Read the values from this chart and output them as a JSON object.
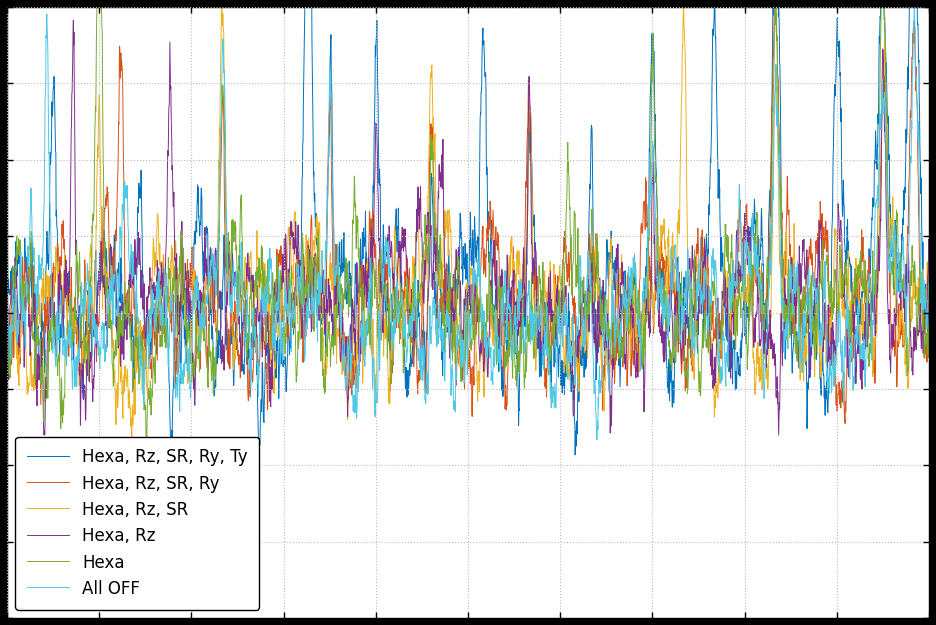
{
  "title": "",
  "xlabel": "",
  "ylabel": "",
  "background_color": "#000000",
  "plot_bg_color": "#ffffff",
  "grid_color": "#aaaaaa",
  "figsize": [
    9.36,
    6.25
  ],
  "dpi": 100,
  "series": [
    {
      "label": "Hexa, Rz, SR, Ry, Ty",
      "color": "#0072bd"
    },
    {
      "label": "Hexa, Rz, SR, Ry",
      "color": "#d95319"
    },
    {
      "label": "Hexa, Rz, SR",
      "color": "#edb120"
    },
    {
      "label": "Hexa, Rz",
      "color": "#7e2f8e"
    },
    {
      "label": "Hexa",
      "color": "#77ac30"
    },
    {
      "label": "All OFF",
      "color": "#4dc9e6"
    }
  ],
  "legend_loc": "lower left",
  "legend_fontsize": 12,
  "n_points": 3000,
  "seed": 42,
  "xlim": [
    0,
    3000
  ],
  "ylim_min": -3.5,
  "ylim_max": 3.5,
  "n_xticks": 11,
  "n_yticks": 9
}
